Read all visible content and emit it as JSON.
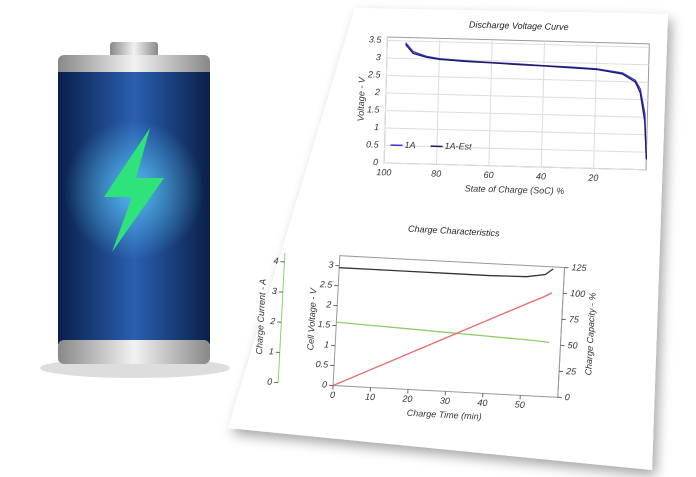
{
  "chart_data": [
    {
      "type": "line",
      "title": "Discharge Voltage Curve",
      "x_label": "State of Charge (SoC) %",
      "y_label": "Voltage - V",
      "x": [
        93,
        90,
        85,
        80,
        70,
        60,
        50,
        40,
        30,
        20,
        10,
        5,
        3,
        1,
        0
      ],
      "xlim": [
        100,
        0
      ],
      "xticks": [
        100,
        80,
        60,
        40,
        20
      ],
      "ylim": [
        0,
        3.6
      ],
      "yticks": [
        0,
        0.5,
        1,
        1.5,
        2,
        2.5,
        3,
        3.5
      ],
      "grid": true,
      "legend": "lower left",
      "series": [
        {
          "name": "1A",
          "color": "#3535d8",
          "values": [
            3.45,
            3.2,
            3.08,
            3.02,
            2.98,
            2.95,
            2.93,
            2.9,
            2.88,
            2.85,
            2.75,
            2.55,
            2.3,
            1.6,
            0.3
          ]
        },
        {
          "name": "1A-Est",
          "color": "#1b1b60",
          "values": [
            3.4,
            3.15,
            3.05,
            3.0,
            2.96,
            2.94,
            2.91,
            2.89,
            2.86,
            2.83,
            2.72,
            2.5,
            2.2,
            1.4,
            0.3
          ]
        }
      ]
    },
    {
      "type": "line",
      "title": "Charge Characteristics",
      "x_label": "Charge Time (min)",
      "y_label": "Cell Voltage - V",
      "y2_label": "Charge Capacity - %",
      "y3_label": "Charge Current - A",
      "x": [
        0,
        10,
        20,
        30,
        40,
        50,
        55,
        57
      ],
      "xlim": [
        0,
        60
      ],
      "xticks": [
        0,
        10,
        20,
        30,
        40,
        50
      ],
      "ylim": [
        0,
        3.25
      ],
      "yticks": [
        0,
        0.5,
        1,
        1.5,
        2,
        2.5,
        3
      ],
      "y2lim": [
        0,
        125
      ],
      "y2ticks": [
        0,
        25,
        50,
        75,
        100,
        125
      ],
      "y3lim": [
        0,
        4.3
      ],
      "y3ticks": [
        0,
        1,
        2,
        3,
        4
      ],
      "grid": false,
      "series": [
        {
          "color": "#333333",
          "values": [
            2.95,
            2.95,
            2.95,
            2.95,
            2.95,
            2.97,
            3.05,
            3.2
          ]
        },
        {
          "color": "#8ccf6a",
          "axis": "y3",
          "values": [
            2.1,
            2.05,
            2.0,
            1.95,
            1.9,
            1.85,
            1.82,
            1.8
          ]
        },
        {
          "color": "#e86a6a",
          "axis": "y2",
          "values": [
            0,
            17.5,
            35,
            52.5,
            70,
            87.5,
            96,
            100
          ]
        }
      ]
    }
  ]
}
